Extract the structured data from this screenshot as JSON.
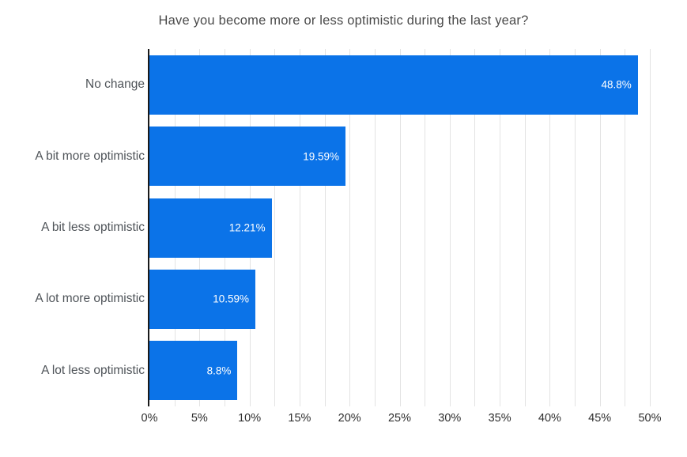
{
  "chart_data": {
    "type": "bar",
    "orientation": "horizontal",
    "title": "Have you become more or less optimistic during the last year?",
    "categories": [
      "No change",
      "A bit more optimistic",
      "A bit less optimistic",
      "A lot more optimistic",
      "A lot less optimistic"
    ],
    "values": [
      48.8,
      19.59,
      12.21,
      10.59,
      8.8
    ],
    "value_labels": [
      "48.8%",
      "19.59%",
      "12.21%",
      "10.59%",
      "8.8%"
    ],
    "x_tick_labels": [
      "0%",
      "5%",
      "10%",
      "15%",
      "20%",
      "25%",
      "30%",
      "35%",
      "40%",
      "45%",
      "50%"
    ],
    "x_tick_values": [
      0,
      5,
      10,
      15,
      20,
      25,
      30,
      35,
      40,
      45,
      50
    ],
    "xlim": [
      0,
      50
    ],
    "grid_step": 2.5,
    "grid_on": true,
    "legend": "none",
    "xlabel": "",
    "ylabel": "",
    "colors": {
      "bar": "#0b73e8",
      "value_label": "#ffffff",
      "gridline": "#e3e3e3",
      "axis_line": "#1a1a1a",
      "category_label": "#4f5459",
      "tick_label": "#2e2e2e",
      "title": "#4a4a4a",
      "background": "#ffffff"
    }
  }
}
